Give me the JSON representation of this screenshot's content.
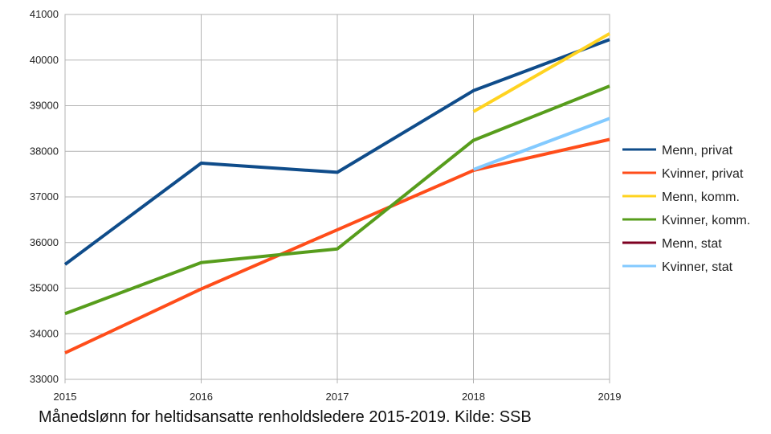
{
  "caption": "Månedslønn for heltidsansatte renholdsledere 2015-2019. Kilde: SSB",
  "chart_data": {
    "type": "line",
    "title": "",
    "xlabel": "",
    "ylabel": "",
    "x": [
      2015,
      2016,
      2017,
      2018,
      2019
    ],
    "x_ticks": [
      "2015",
      "2016",
      "2017",
      "2018",
      "2019"
    ],
    "ylim": [
      33000,
      41000
    ],
    "y_ticks": [
      33000,
      34000,
      35000,
      36000,
      37000,
      38000,
      39000,
      40000,
      41000
    ],
    "grid": true,
    "legend_position": "right",
    "series": [
      {
        "name": "Menn, privat",
        "color": "#0f4c8a",
        "values": [
          35520,
          37740,
          37540,
          39330,
          40450
        ]
      },
      {
        "name": "Kvinner, privat",
        "color": "#ff4d1a",
        "values": [
          33580,
          34980,
          36280,
          37580,
          38260
        ]
      },
      {
        "name": "Menn, komm.",
        "color": "#ffd320",
        "values": [
          null,
          null,
          null,
          38870,
          40580
        ]
      },
      {
        "name": "Kvinner, komm.",
        "color": "#579d1c",
        "values": [
          34440,
          35560,
          35860,
          38240,
          39430
        ]
      },
      {
        "name": "Menn, stat",
        "color": "#7e0021",
        "values": [
          null,
          null,
          null,
          null,
          null
        ]
      },
      {
        "name": "Kvinner, stat",
        "color": "#83caff",
        "values": [
          null,
          null,
          null,
          37600,
          38720
        ]
      }
    ]
  }
}
